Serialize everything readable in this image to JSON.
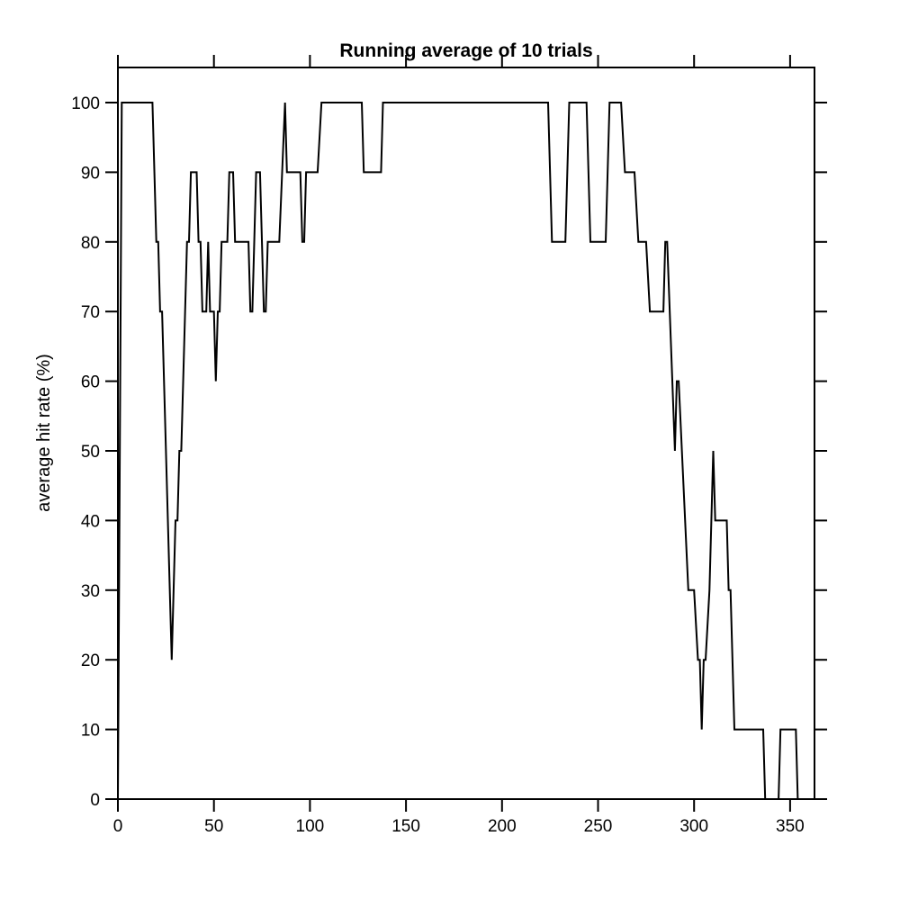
{
  "chart_data": {
    "type": "line",
    "title": "Running average of 10 trials",
    "xlabel": "",
    "ylabel": "average hit rate (%)",
    "xlim": [
      0,
      365
    ],
    "ylim": [
      0,
      105
    ],
    "xticks": [
      0,
      50,
      100,
      150,
      200,
      250,
      300,
      350
    ],
    "yticks": [
      0,
      10,
      20,
      30,
      40,
      50,
      60,
      70,
      80,
      90,
      100
    ],
    "grid": false,
    "colors": {
      "line": "#000000",
      "axis": "#000000",
      "background": "#ffffff"
    },
    "series": [
      {
        "points": [
          [
            0,
            0
          ],
          [
            2,
            100
          ],
          [
            18,
            100
          ],
          [
            20,
            80
          ],
          [
            21,
            80
          ],
          [
            22,
            70
          ],
          [
            23,
            70
          ],
          [
            28,
            20
          ],
          [
            30,
            40
          ],
          [
            31,
            40
          ],
          [
            32,
            50
          ],
          [
            33,
            50
          ],
          [
            36,
            80
          ],
          [
            37,
            80
          ],
          [
            38,
            90
          ],
          [
            41,
            90
          ],
          [
            42,
            80
          ],
          [
            43,
            80
          ],
          [
            44,
            70
          ],
          [
            46,
            70
          ],
          [
            47,
            80
          ],
          [
            48,
            70
          ],
          [
            50,
            70
          ],
          [
            51,
            60
          ],
          [
            52,
            70
          ],
          [
            53,
            70
          ],
          [
            54,
            80
          ],
          [
            57,
            80
          ],
          [
            58,
            90
          ],
          [
            60,
            90
          ],
          [
            61,
            80
          ],
          [
            68,
            80
          ],
          [
            69,
            70
          ],
          [
            70,
            70
          ],
          [
            72,
            90
          ],
          [
            74,
            90
          ],
          [
            76,
            70
          ],
          [
            77,
            70
          ],
          [
            78,
            80
          ],
          [
            84,
            80
          ],
          [
            87,
            100
          ],
          [
            88,
            90
          ],
          [
            95,
            90
          ],
          [
            96,
            80
          ],
          [
            97,
            80
          ],
          [
            98,
            90
          ],
          [
            104,
            90
          ],
          [
            106,
            100
          ],
          [
            127,
            100
          ],
          [
            128,
            90
          ],
          [
            137,
            90
          ],
          [
            138,
            100
          ],
          [
            224,
            100
          ],
          [
            226,
            80
          ],
          [
            233,
            80
          ],
          [
            235,
            100
          ],
          [
            244,
            100
          ],
          [
            246,
            80
          ],
          [
            254,
            80
          ],
          [
            256,
            100
          ],
          [
            262,
            100
          ],
          [
            264,
            90
          ],
          [
            269,
            90
          ],
          [
            271,
            80
          ],
          [
            275,
            80
          ],
          [
            277,
            70
          ],
          [
            284,
            70
          ],
          [
            285,
            80
          ],
          [
            286,
            80
          ],
          [
            290,
            50
          ],
          [
            291,
            60
          ],
          [
            292,
            60
          ],
          [
            297,
            30
          ],
          [
            300,
            30
          ],
          [
            302,
            20
          ],
          [
            303,
            20
          ],
          [
            304,
            10
          ],
          [
            305,
            20
          ],
          [
            306,
            20
          ],
          [
            308,
            30
          ],
          [
            309,
            40
          ],
          [
            310,
            50
          ],
          [
            311,
            40
          ],
          [
            317,
            40
          ],
          [
            318,
            30
          ],
          [
            319,
            30
          ],
          [
            321,
            10
          ],
          [
            336,
            10
          ],
          [
            337,
            0
          ],
          [
            344,
            0
          ],
          [
            345,
            10
          ],
          [
            353,
            10
          ],
          [
            354,
            0
          ],
          [
            365,
            0
          ]
        ]
      }
    ]
  }
}
